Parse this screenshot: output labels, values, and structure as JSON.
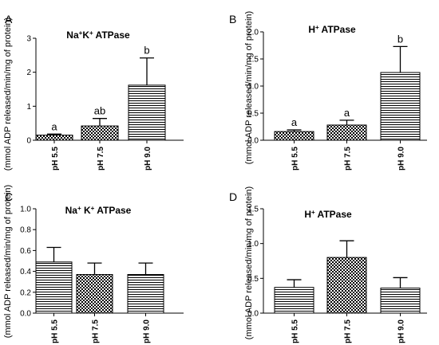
{
  "colors": {
    "axis": "#000000",
    "bar_stroke": "#000000",
    "fill": "#ffffff"
  },
  "chart_data": [
    {
      "panel": "A",
      "type": "bar",
      "title": "Na+K+ ATPase",
      "title_parts": [
        {
          "t": "Na"
        },
        {
          "t": "+",
          "sup": true
        },
        {
          "t": "K"
        },
        {
          "t": "+",
          "sup": true
        },
        {
          "t": " ATPase"
        }
      ],
      "ylabel": "(mmol ADP released/min/mg of protein)",
      "xlabel": "",
      "categories": [
        "pH 5.5",
        "pH 7.5",
        "pH 9.0"
      ],
      "values": [
        0.15,
        0.42,
        1.62
      ],
      "errors": [
        0.03,
        0.22,
        0.8
      ],
      "letters": [
        "a",
        "ab",
        "b"
      ],
      "patterns": [
        "checker",
        "checker",
        "hlines"
      ],
      "ylim": [
        0,
        3
      ],
      "yticks": [
        0,
        1,
        2,
        3
      ],
      "ytick_labels": [
        "0",
        "1",
        "2",
        "3"
      ]
    },
    {
      "panel": "B",
      "type": "bar",
      "title": "H+ ATPase",
      "title_parts": [
        {
          "t": "H"
        },
        {
          "t": "+",
          "sup": true
        },
        {
          "t": " ATPase"
        }
      ],
      "ylabel": "(mmol ADP released/min/mg of protein)",
      "xlabel": "",
      "categories": [
        "pH 5.5",
        "pH 7.5",
        "pH 9.0"
      ],
      "values": [
        0.16,
        0.28,
        1.25
      ],
      "errors": [
        0.03,
        0.09,
        0.48
      ],
      "letters": [
        "a",
        "a",
        "b"
      ],
      "patterns": [
        "checker",
        "checker",
        "hlines"
      ],
      "ylim": [
        0,
        2
      ],
      "yticks": [
        0,
        0.5,
        1,
        1.5,
        2
      ],
      "ytick_labels": [
        "0.0",
        "0.5",
        "1.0",
        "1.5",
        "2.0"
      ]
    },
    {
      "panel": "C",
      "type": "bar",
      "title": "Na+ K+ ATPase",
      "title_parts": [
        {
          "t": "Na"
        },
        {
          "t": "+",
          "sup": true
        },
        {
          "t": " K"
        },
        {
          "t": "+",
          "sup": true
        },
        {
          "t": " ATPase"
        }
      ],
      "ylabel": "(mmol ADP released/min/mg of protein)",
      "xlabel": "",
      "categories": [
        "pH 5.5",
        "pH 7.5",
        "pH 9.0"
      ],
      "values": [
        0.49,
        0.37,
        0.37
      ],
      "errors": [
        0.14,
        0.11,
        0.11
      ],
      "letters": [],
      "patterns": [
        "hlines",
        "checker",
        "hlines"
      ],
      "ylim": [
        0,
        1
      ],
      "yticks": [
        0,
        0.2,
        0.4,
        0.6,
        0.8,
        1.0
      ],
      "ytick_labels": [
        "0.0",
        "0.2",
        "0.4",
        "0.6",
        "0.8",
        "1.0"
      ]
    },
    {
      "panel": "D",
      "type": "bar",
      "title": "H+ ATPase",
      "title_parts": [
        {
          "t": "H"
        },
        {
          "t": "+",
          "sup": true
        },
        {
          "t": " ATPase"
        }
      ],
      "ylabel": "(mmol ADP released/min/mg of protein)",
      "xlabel": "",
      "categories": [
        "pH 5.5",
        "pH 7.5",
        "pH 9.0"
      ],
      "values": [
        0.37,
        0.8,
        0.36
      ],
      "errors": [
        0.11,
        0.24,
        0.15
      ],
      "letters": [],
      "patterns": [
        "hlines",
        "checker",
        "hlines"
      ],
      "ylim": [
        0,
        1.5
      ],
      "yticks": [
        0,
        0.5,
        1,
        1.5
      ],
      "ytick_labels": [
        "0.0",
        "0.5",
        "1.0",
        "1.5"
      ]
    }
  ]
}
